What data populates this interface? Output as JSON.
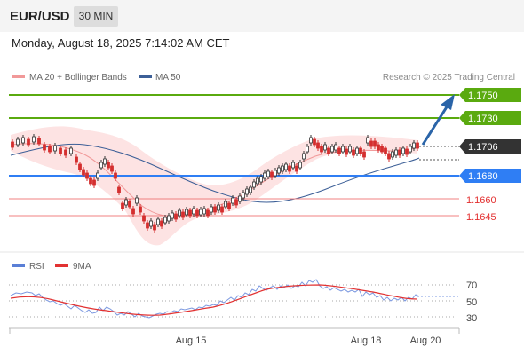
{
  "header": {
    "symbol": "EUR/USD",
    "timeframe": "30 MIN"
  },
  "timestamp": "Monday, August 18, 2025 7:14:02 AM CET",
  "legend": {
    "ma": "MA 20 + Bollinger Bands",
    "ma50": "MA 50",
    "watermark": "Research © 2025 Trading Central"
  },
  "levels": {
    "target2": "1.1750",
    "target1": "1.1730",
    "last": "1.1706",
    "pivot": "1.1680",
    "support1": "1.1660",
    "support2": "1.1645"
  },
  "indicator": {
    "rsi": "RSI",
    "ma": "9MA",
    "ticks": [
      "70",
      "50",
      "30"
    ]
  },
  "xaxis": [
    "Aug 15",
    "Aug 18",
    "Aug 20"
  ],
  "colors": {
    "resistance": "#5aaa0f",
    "pivot": "#2f7ef4",
    "support": "#f08080",
    "price_label": "#333333",
    "bollinger_fill": "#fde3e3",
    "ma20": "#f19999",
    "ma50": "#3c5f97",
    "arrow": "#2a64a8",
    "rsi_line": "#7b98e0",
    "rsi_ma": "#e23232",
    "candle": "#d42f2f",
    "candle_up": "#333333"
  }
}
